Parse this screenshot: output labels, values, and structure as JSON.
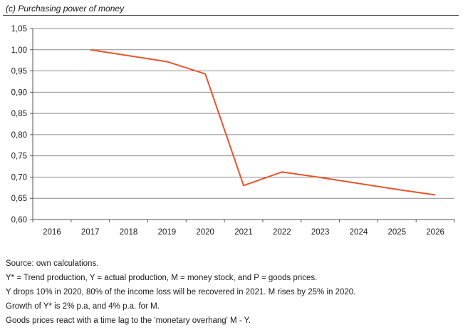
{
  "chart_data": {
    "type": "line",
    "title": "(c) Purchasing power of money",
    "xlabel": "",
    "ylabel": "",
    "categories": [
      "2016",
      "2017",
      "2018",
      "2019",
      "2020",
      "2021",
      "2022",
      "2023",
      "2024",
      "2025",
      "2026"
    ],
    "series": [
      {
        "values": [
          null,
          1.0,
          0.986,
          0.972,
          0.943,
          0.68,
          0.712,
          0.699,
          0.685,
          0.671,
          0.658
        ]
      }
    ],
    "ylim": [
      0.6,
      1.05
    ],
    "yticks": [
      "0,60",
      "0,65",
      "0,70",
      "0,75",
      "0,80",
      "0,85",
      "0,90",
      "0,95",
      "1,00",
      "1,05"
    ],
    "grid": true,
    "line_color": "#e8552a",
    "grid_color": "#8c8c8c"
  },
  "notes": {
    "source": "Source: own calculations.",
    "line1": "Y* = Trend production, Y = actual production, M = money stock, and P = goods prices.",
    "line2": "Y drops 10% in 2020, 80% of the income loss will be recovered in 2021. M rises by 25% in 2020.",
    "line3": "Growth of Y* is 2% p.a, and 4% p.a. for M.",
    "line4": "Goods prices react with a time lag to the 'monetary overhang' M - Y."
  }
}
